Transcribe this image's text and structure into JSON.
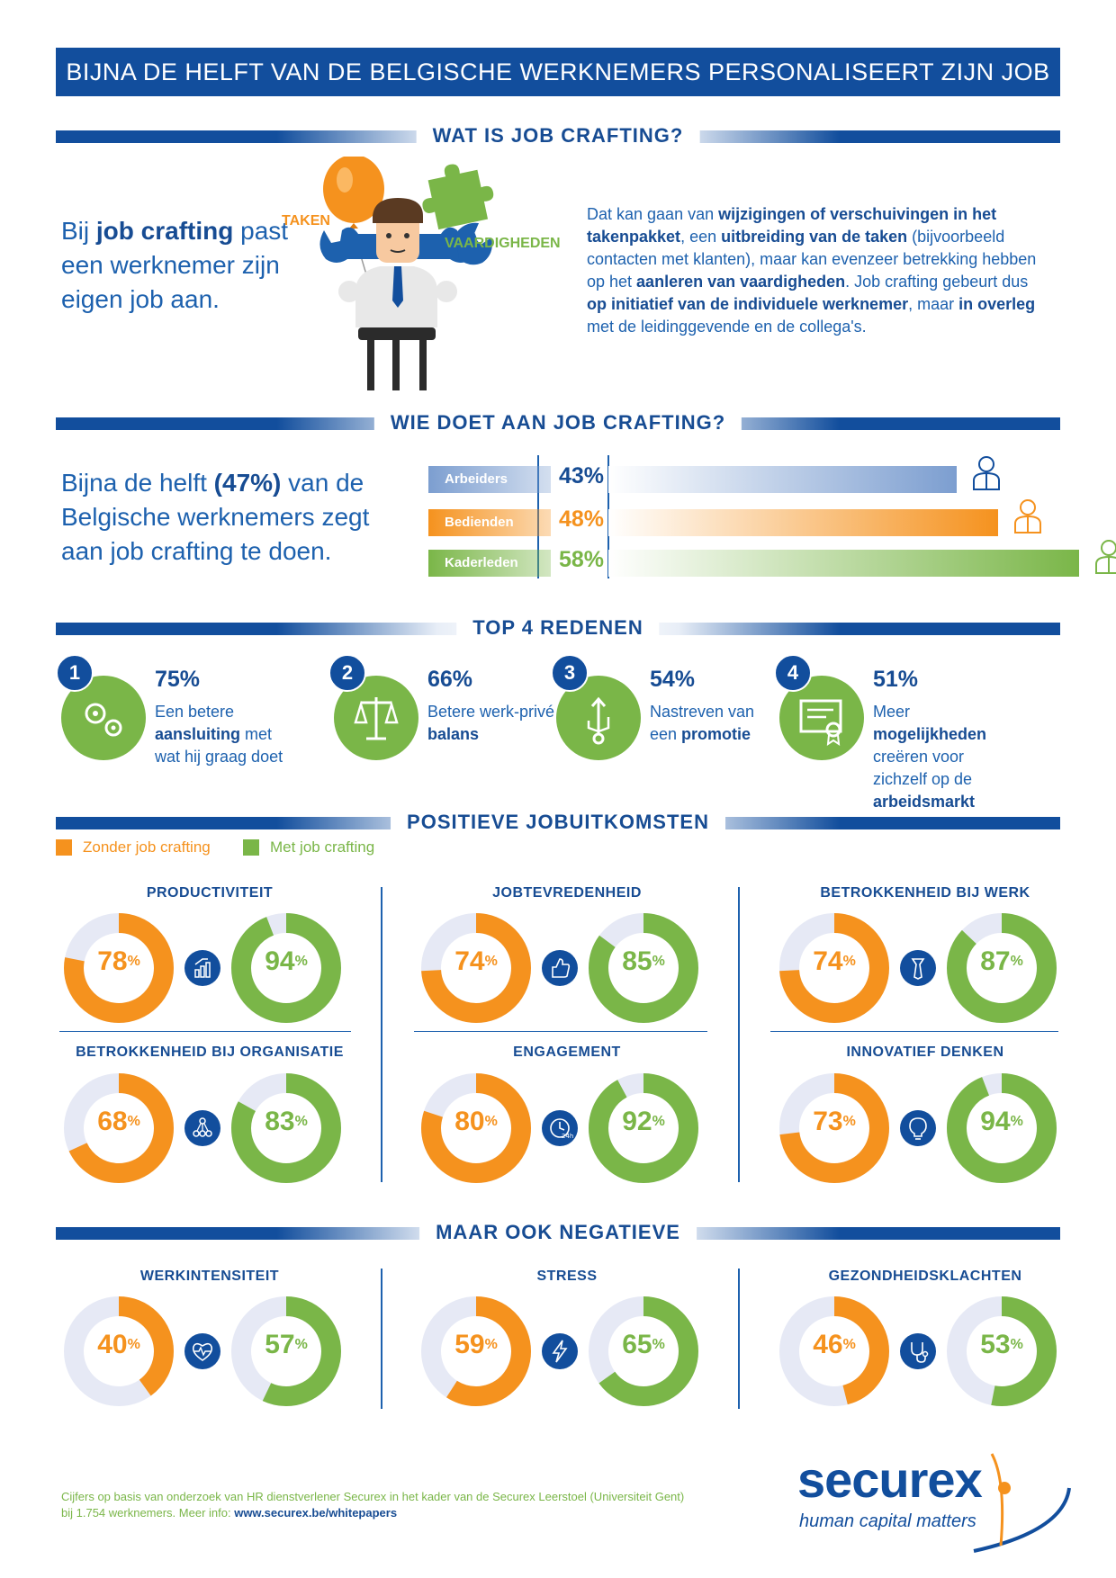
{
  "title": "BIJNA DE HELFT VAN DE BELGISCHE WERKNEMERS PERSONALISEERT ZIJN JOB",
  "colors": {
    "blue": "#124e9d",
    "orange": "#f5921e",
    "green": "#7ab648",
    "light": "#e6e9f5"
  },
  "section1": {
    "header": "WAT IS JOB CRAFTING?",
    "intro_pre": "Bij ",
    "intro_bold": "job crafting",
    "intro_post": " past een werknemer zijn eigen job aan.",
    "label_taken": "TAKEN",
    "label_vaardigheden": "VAARDIGHEDEN",
    "text": {
      "p1": "Dat kan gaan van ",
      "b1": "wijzigingen of verschuivingen in het takenpakket",
      "p2": ", een ",
      "b2": "uitbreiding van de taken",
      "p3": " (bijvoorbeeld contacten met klanten), maar kan evenzeer betrekking hebben op het ",
      "b3": "aanleren van vaardigheden",
      "p4": ". Job crafting gebeurt dus ",
      "b4": "op initiatief van de individuele werknemer",
      "p5": ", maar ",
      "b5": "in overleg",
      "p6": " met de leidinggevende en de collega's."
    }
  },
  "section2": {
    "header": "WIE DOET AAN JOB CRAFTING?",
    "text_pre": "Bijna de helft ",
    "text_bold": "(47%)",
    "text_post": " van de Belgische werknemers zegt aan job crafting te doen.",
    "rows": [
      {
        "label": "Arbeiders",
        "pct": "43%",
        "value": 43,
        "color": "#7c9ed0",
        "icon": "worker-icon"
      },
      {
        "label": "Bedienden",
        "pct": "48%",
        "value": 48,
        "color": "#f5921e",
        "icon": "employee-icon"
      },
      {
        "label": "Kaderleden",
        "pct": "58%",
        "value": 58,
        "color": "#7ab648",
        "icon": "manager-icon"
      }
    ]
  },
  "section3": {
    "header": "TOP 4 REDENEN",
    "reasons": [
      {
        "num": "1",
        "pct": "75%",
        "t1": "Een betere ",
        "b1": "aansluiting",
        "t2": " met wat hij graag doet",
        "icon": "gears-icon"
      },
      {
        "num": "2",
        "pct": "66%",
        "t1": "Betere werk-privé ",
        "b1": "balans",
        "t2": "",
        "icon": "scale-icon"
      },
      {
        "num": "3",
        "pct": "54%",
        "t1": "Nastreven van een ",
        "b1": "promotie",
        "t2": "",
        "icon": "promotion-icon"
      },
      {
        "num": "4",
        "pct": "51%",
        "t1": "Meer ",
        "b1": "mogelijkheden",
        "t2": " creëren voor zichzelf op de ",
        "b2": "arbeidsmarkt",
        "icon": "certificate-icon"
      }
    ]
  },
  "section4": {
    "header": "POSITIEVE JOBUITKOMSTEN",
    "legend_without": "Zonder job crafting",
    "legend_with": "Met job crafting",
    "groups": [
      {
        "title": "PRODUCTIVITEIT",
        "without": 78,
        "with": 94,
        "icon": "chart-icon"
      },
      {
        "title": "JOBTEVREDENHEID",
        "without": 74,
        "with": 85,
        "icon": "thumbs-up-icon"
      },
      {
        "title": "BETROKKENHEID BIJ WERK",
        "without": 74,
        "with": 87,
        "icon": "tie-icon"
      },
      {
        "title": "BETROKKENHEID BIJ ORGANISATIE",
        "without": 68,
        "with": 83,
        "icon": "network-icon"
      },
      {
        "title": "ENGAGEMENT",
        "without": 80,
        "with": 92,
        "icon": "clock-24h-icon"
      },
      {
        "title": "INNOVATIEF DENKEN",
        "without": 73,
        "with": 94,
        "icon": "lightbulb-icon"
      }
    ]
  },
  "section5": {
    "header": "MAAR OOK NEGATIEVE",
    "groups": [
      {
        "title": "WERKINTENSITEIT",
        "without": 40,
        "with": 57,
        "icon": "heartbeat-icon"
      },
      {
        "title": "STRESS",
        "without": 59,
        "with": 65,
        "icon": "lightning-icon"
      },
      {
        "title": "GEZONDHEIDSKLACHTEN",
        "without": 46,
        "with": 53,
        "icon": "stethoscope-icon"
      }
    ]
  },
  "footer": {
    "line1": "Cijfers op basis van onderzoek van HR dienstverlener Securex in het kader van de Securex Leerstoel (Universiteit Gent)",
    "line2_pre": "bij 1.754 werknemers. Meer info: ",
    "link": "www.securex.be/whitepapers"
  },
  "logo": {
    "word": "securex",
    "tagline": "human capital matters"
  }
}
